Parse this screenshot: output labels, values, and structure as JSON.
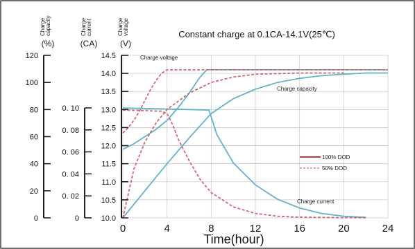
{
  "chart_data": {
    "type": "line",
    "title": "Constant charge at 0.1CA-14.1V(25℃)",
    "xlabel": "Time(hour)",
    "xlim": [
      0,
      24
    ],
    "x_ticks": [
      "0",
      "4",
      "8",
      "12",
      "16",
      "20",
      "24"
    ],
    "grid": true,
    "axes": [
      {
        "id": "capacity",
        "header": "Charge capacity",
        "unit": "(%)",
        "range": [
          0,
          120
        ],
        "ticks": [
          {
            "value": 0,
            "label": "0"
          },
          {
            "value": 20,
            "label": "20"
          },
          {
            "value": 40,
            "label": "40"
          },
          {
            "value": 60,
            "label": "60"
          },
          {
            "value": 80,
            "label": "80"
          },
          {
            "value": 100,
            "label": "100"
          },
          {
            "value": 120,
            "label": "120"
          }
        ]
      },
      {
        "id": "current",
        "header": "Charge current",
        "unit": "(CA)",
        "range": [
          0,
          0.1
        ],
        "ticks": [
          {
            "value": 0,
            "label": "0"
          },
          {
            "value": 0.02,
            "label": "0. 02"
          },
          {
            "value": 0.04,
            "label": "0. 04"
          },
          {
            "value": 0.06,
            "label": "0. 06"
          },
          {
            "value": 0.08,
            "label": "0. 08"
          },
          {
            "value": 0.1,
            "label": "0. 10"
          }
        ]
      },
      {
        "id": "voltage",
        "header": "Charge voltage",
        "unit": "(V)",
        "range": [
          10.0,
          14.5
        ],
        "ticks": [
          {
            "value": 10.0,
            "label": "10.0"
          },
          {
            "value": 10.5,
            "label": "10.5"
          },
          {
            "value": 11.0,
            "label": "11.0"
          },
          {
            "value": 11.5,
            "label": "11.5"
          },
          {
            "value": 12.0,
            "label": "12.0"
          },
          {
            "value": 12.5,
            "label": "12.5"
          },
          {
            "value": 13.0,
            "label": "13.0"
          },
          {
            "value": 13.5,
            "label": "13.5"
          },
          {
            "value": 14.0,
            "label": "14.0"
          },
          {
            "value": 14.5,
            "label": "14.5"
          }
        ]
      }
    ],
    "annotations": [
      "Charge    voltage",
      "Charge      capacity",
      "Charge      current"
    ],
    "legend": {
      "position": "right-middle",
      "entries": [
        {
          "label": "100% DOD",
          "color": "#b03a48",
          "dash": false
        },
        {
          "label": "50% DOD",
          "color": "#e8a0a6",
          "dash": true
        }
      ]
    },
    "series": [
      {
        "name": "Charge voltage",
        "dod": "100%",
        "axis": "voltage",
        "style": "solid",
        "color": "#5bb6cc",
        "x": [
          0,
          1,
          2,
          3,
          4,
          5,
          6,
          7,
          7.6,
          9,
          12,
          16,
          20,
          24
        ],
        "y": [
          11.9,
          12.05,
          12.25,
          12.45,
          12.7,
          13.05,
          13.45,
          13.9,
          14.1,
          14.1,
          14.1,
          14.1,
          14.1,
          14.1
        ]
      },
      {
        "name": "Charge current",
        "dod": "100%",
        "axis": "current",
        "style": "solid",
        "color": "#5bb6cc",
        "x": [
          0,
          2,
          4,
          6,
          7.8,
          8.5,
          10,
          12,
          14,
          16,
          18,
          20,
          22
        ],
        "y": [
          0.1,
          0.0995,
          0.099,
          0.0985,
          0.098,
          0.076,
          0.05,
          0.03,
          0.017,
          0.009,
          0.004,
          0.0015,
          0.0005
        ]
      },
      {
        "name": "Charge capacity",
        "dod": "100%",
        "axis": "capacity",
        "style": "solid",
        "color": "#5bb6cc",
        "x": [
          0,
          2,
          4,
          6,
          8,
          10,
          12,
          14,
          16,
          18,
          20,
          22,
          24
        ],
        "y": [
          0,
          20,
          40,
          59,
          77,
          88,
          95,
          100,
          103,
          105,
          106,
          107,
          107
        ]
      },
      {
        "name": "Charge voltage",
        "dod": "50%",
        "axis": "voltage",
        "style": "dashed",
        "color": "#d56470",
        "x": [
          0,
          0.5,
          1,
          1.5,
          2,
          2.5,
          3,
          3.5,
          4,
          5,
          8,
          12,
          16,
          20,
          24
        ],
        "y": [
          12.35,
          12.5,
          12.7,
          12.95,
          13.25,
          13.55,
          13.8,
          14.0,
          14.1,
          14.1,
          14.1,
          14.1,
          14.1,
          14.1,
          14.1
        ]
      },
      {
        "name": "Charge current",
        "dod": "50%",
        "axis": "current",
        "style": "dashed",
        "color": "#d56470",
        "x": [
          0,
          2,
          3.5,
          4,
          4.5,
          5,
          6,
          7,
          8,
          10,
          12,
          14,
          16,
          20,
          22
        ],
        "y": [
          0.098,
          0.0975,
          0.097,
          0.095,
          0.085,
          0.072,
          0.052,
          0.035,
          0.023,
          0.01,
          0.004,
          0.0015,
          0.0006,
          0.0002,
          0.0001
        ]
      },
      {
        "name": "Charge capacity",
        "dod": "50%",
        "axis": "capacity",
        "style": "dashed",
        "color": "#d56470",
        "x": [
          0,
          0.5,
          1,
          2,
          3,
          4,
          6,
          8,
          10,
          12,
          16,
          20
        ],
        "y": [
          0,
          18,
          36,
          56,
          70,
          80,
          92,
          100,
          104,
          106,
          107,
          107
        ]
      }
    ]
  }
}
